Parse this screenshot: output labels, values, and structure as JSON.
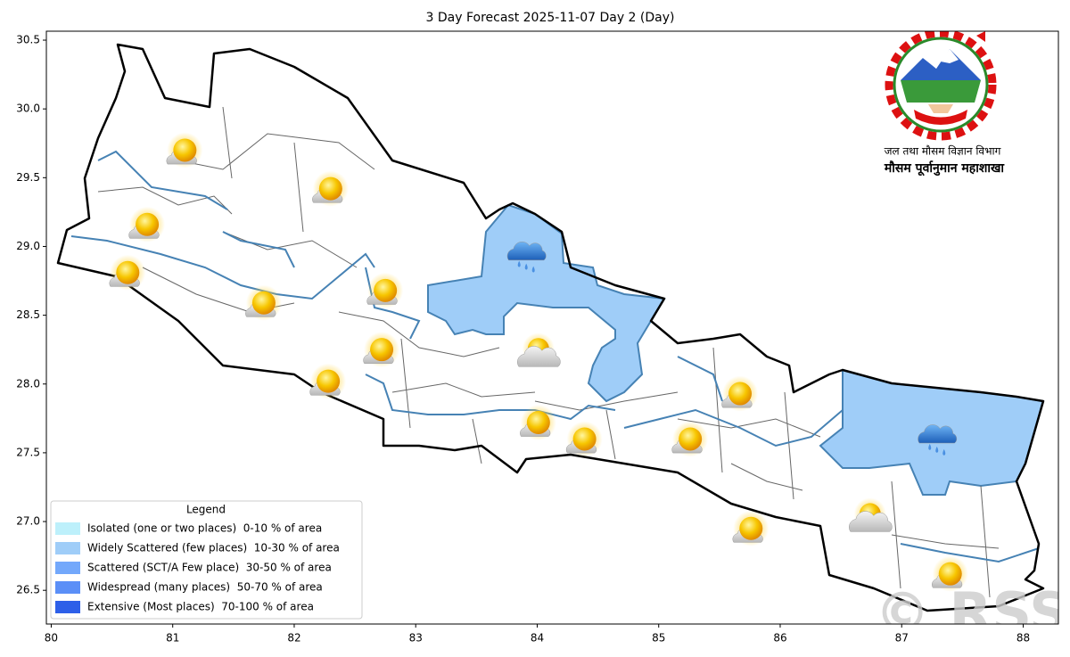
{
  "map": {
    "title": "3 Day Forecast 2025-11-07 Day 2 (Day)",
    "xlim": [
      79.96,
      88.29
    ],
    "ylim": [
      26.255,
      30.565
    ],
    "xticks": [
      80,
      81,
      82,
      83,
      84,
      85,
      86,
      87,
      88
    ],
    "yticks": [
      26.5,
      {
        "value": 27,
        "label": "27.0"
      },
      27.5,
      {
        "value": 28,
        "label": "28.0"
      },
      28.5,
      {
        "value": 29,
        "label": "29.0"
      },
      29.5,
      {
        "value": 30,
        "label": "30.0"
      },
      30.5
    ],
    "legend": {
      "title": "Legend",
      "entries": [
        {
          "label": "Isolated (one or two places)  0-10 % of area",
          "color": "#bdf0fb"
        },
        {
          "label": "Widely Scattered (few places)  10-30 % of area",
          "color": "#9fcdf8"
        },
        {
          "label": "Scattered (SCT/A Few place)  30-50 % of area",
          "color": "#73a8fb"
        },
        {
          "label": "Widespread (many places)  50-70 % of area",
          "color": "#5b8ff7"
        },
        {
          "label": "Extensive (Most places)  70-100 % of area",
          "color": "#2d5fe8"
        }
      ]
    },
    "region_category": 1,
    "forecast_icons": [
      {
        "type": "sunny",
        "lon": 81.1,
        "lat": 29.7
      },
      {
        "type": "sunny",
        "lon": 82.3,
        "lat": 29.42
      },
      {
        "type": "sunny",
        "lon": 80.79,
        "lat": 29.16
      },
      {
        "type": "sunny",
        "lon": 80.63,
        "lat": 28.81
      },
      {
        "type": "sunny",
        "lon": 81.75,
        "lat": 28.59
      },
      {
        "type": "sunny",
        "lon": 82.75,
        "lat": 28.68
      },
      {
        "type": "sunny",
        "lon": 82.72,
        "lat": 28.25
      },
      {
        "type": "sunny",
        "lon": 82.28,
        "lat": 28.02
      },
      {
        "type": "rain",
        "lon": 83.91,
        "lat": 28.96
      },
      {
        "type": "partly-cloudy",
        "lon": 84.01,
        "lat": 28.23
      },
      {
        "type": "sunny",
        "lon": 85.67,
        "lat": 27.93
      },
      {
        "type": "sunny",
        "lon": 84.01,
        "lat": 27.72
      },
      {
        "type": "sunny",
        "lon": 84.39,
        "lat": 27.6
      },
      {
        "type": "sunny",
        "lon": 85.26,
        "lat": 27.6
      },
      {
        "type": "rain",
        "lon": 87.29,
        "lat": 27.63
      },
      {
        "type": "partly-cloudy",
        "lon": 86.74,
        "lat": 27.03
      },
      {
        "type": "sunny",
        "lon": 85.76,
        "lat": 26.95
      },
      {
        "type": "sunny",
        "lon": 87.4,
        "lat": 26.62
      }
    ],
    "agency": "जल तथा मौसम विज्ञान विभाग",
    "division": "मौसम पूर्वानुमान महाशाखा",
    "watermark": "© RSS"
  }
}
